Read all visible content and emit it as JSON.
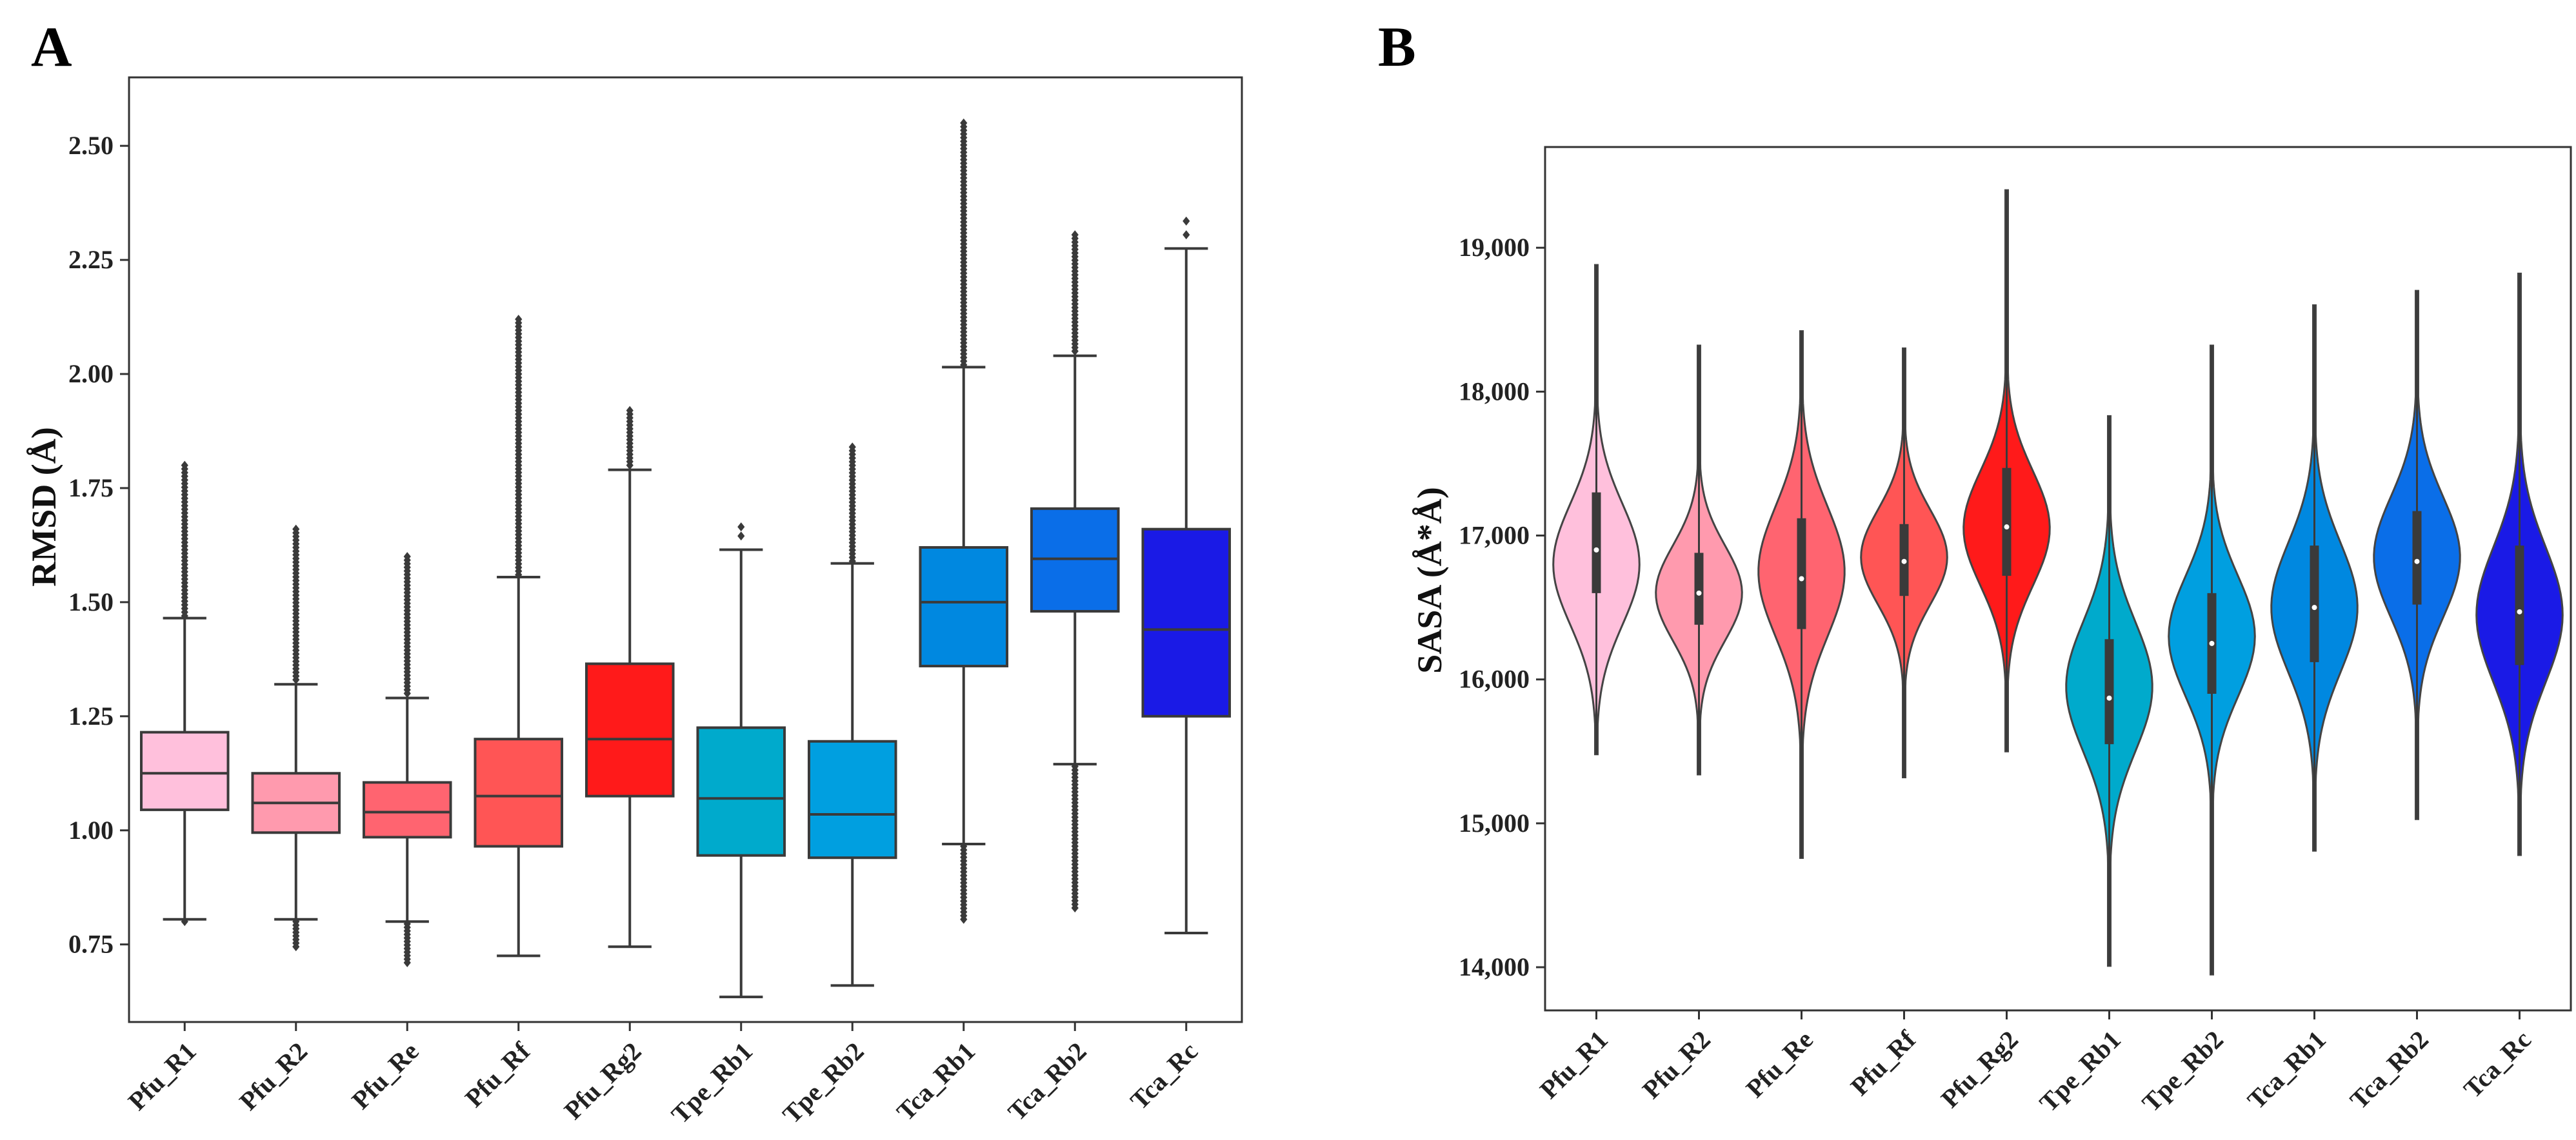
{
  "chart_data": [
    {
      "panel": "A",
      "type": "box",
      "title": "",
      "xlabel": "",
      "ylabel": "RMSD (Å)",
      "ylim": [
        0.58,
        2.65
      ],
      "yticks": [
        0.75,
        1.0,
        1.25,
        1.5,
        1.75,
        2.0,
        2.25,
        2.5
      ],
      "ytick_labels": [
        "0.75",
        "1.00",
        "1.25",
        "1.50",
        "1.75",
        "2.00",
        "2.25",
        "2.50"
      ],
      "categories": [
        "Pfu_R1",
        "Pfu_R2",
        "Pfu_Re",
        "Pfu_Rf",
        "Pfu_Rg2",
        "Tpe_Rb1",
        "Tpe_Rb2",
        "Tca_Rb1",
        "Tca_Rb2",
        "Tca_Rc"
      ],
      "colors": [
        "#ffc0dc",
        "#ff9aae",
        "#ff6470",
        "#ff5555",
        "#ff1a1a",
        "#00aacc",
        "#009fe0",
        "#0088e0",
        "#0a6ee8",
        "#1a1ae6"
      ],
      "boxes": [
        {
          "whislo": 0.805,
          "q1": 1.045,
          "median": 1.125,
          "q3": 1.215,
          "whishi": 1.465,
          "fliers_low": [
            0.8
          ],
          "fliers_high_min": 1.47,
          "fliers_high_max": 1.8
        },
        {
          "whislo": 0.805,
          "q1": 0.995,
          "median": 1.06,
          "q3": 1.125,
          "whishi": 1.32,
          "fliers_low_min": 0.745,
          "fliers_low_max": 0.8,
          "fliers_high_min": 1.33,
          "fliers_high_max": 1.66
        },
        {
          "whislo": 0.8,
          "q1": 0.985,
          "median": 1.04,
          "q3": 1.105,
          "whishi": 1.29,
          "fliers_low_min": 0.71,
          "fliers_low_max": 0.795,
          "fliers_high_min": 1.3,
          "fliers_high_max": 1.6
        },
        {
          "whislo": 0.725,
          "q1": 0.965,
          "median": 1.075,
          "q3": 1.2,
          "whishi": 1.555,
          "fliers_high_min": 1.56,
          "fliers_high_max": 2.12
        },
        {
          "whislo": 0.745,
          "q1": 1.075,
          "median": 1.2,
          "q3": 1.365,
          "whishi": 1.79,
          "fliers_high_min": 1.8,
          "fliers_high_max": 1.92
        },
        {
          "whislo": 0.635,
          "q1": 0.945,
          "median": 1.07,
          "q3": 1.225,
          "whishi": 1.615,
          "fliers_high": [
            1.645,
            1.665
          ]
        },
        {
          "whislo": 0.66,
          "q1": 0.94,
          "median": 1.035,
          "q3": 1.195,
          "whishi": 1.585,
          "fliers_high_min": 1.59,
          "fliers_high_max": 1.84
        },
        {
          "whislo": 0.97,
          "q1": 1.36,
          "median": 1.5,
          "q3": 1.62,
          "whishi": 2.015,
          "fliers_low_min": 0.805,
          "fliers_low_max": 0.965,
          "fliers_high_min": 2.02,
          "fliers_high_max": 2.55
        },
        {
          "whislo": 1.145,
          "q1": 1.48,
          "median": 1.595,
          "q3": 1.705,
          "whishi": 2.04,
          "fliers_low_min": 0.83,
          "fliers_low_max": 1.14,
          "fliers_high_min": 2.05,
          "fliers_high_max": 2.305
        },
        {
          "whislo": 0.775,
          "q1": 1.25,
          "median": 1.44,
          "q3": 1.66,
          "whishi": 2.275,
          "fliers_high": [
            2.305,
            2.335
          ]
        }
      ]
    },
    {
      "panel": "B",
      "type": "violin",
      "title": "",
      "xlabel": "",
      "ylabel": "SASA (Å*Å)",
      "ylim": [
        13700,
        19700
      ],
      "yticks": [
        14000,
        15000,
        16000,
        17000,
        18000,
        19000
      ],
      "ytick_labels": [
        "14,000",
        "15,000",
        "16,000",
        "17,000",
        "18,000",
        "19,000"
      ],
      "categories": [
        "Pfu_R1",
        "Pfu_R2",
        "Pfu_Re",
        "Pfu_Rf",
        "Pfu_Rg2",
        "Tpe_Rb1",
        "Tpe_Rb2",
        "Tca_Rb1",
        "Tca_Rb2",
        "Tca_Rc"
      ],
      "colors": [
        "#ffc0dc",
        "#ff9aae",
        "#ff6470",
        "#ff5555",
        "#ff1a1a",
        "#00aacc",
        "#009fe0",
        "#0088e0",
        "#0a6ee8",
        "#1a1ae6"
      ],
      "violins": [
        {
          "min": 15480,
          "max": 18880,
          "q1": 16600,
          "median": 16900,
          "q3": 17300,
          "mode": 16800,
          "spread": 420
        },
        {
          "min": 15340,
          "max": 18320,
          "q1": 16380,
          "median": 16600,
          "q3": 16880,
          "mode": 16600,
          "spread": 330
        },
        {
          "min": 14760,
          "max": 18420,
          "q1": 16350,
          "median": 16700,
          "q3": 17120,
          "mode": 16750,
          "spread": 450
        },
        {
          "min": 15320,
          "max": 18300,
          "q1": 16580,
          "median": 16820,
          "q3": 17080,
          "mode": 16850,
          "spread": 330
        },
        {
          "min": 15500,
          "max": 19400,
          "q1": 16720,
          "median": 17060,
          "q3": 17470,
          "mode": 17050,
          "spread": 400
        },
        {
          "min": 14010,
          "max": 17830,
          "q1": 15550,
          "median": 15870,
          "q3": 16280,
          "mode": 15950,
          "spread": 450
        },
        {
          "min": 13950,
          "max": 18320,
          "q1": 15900,
          "median": 16250,
          "q3": 16600,
          "mode": 16300,
          "spread": 420
        },
        {
          "min": 14810,
          "max": 18600,
          "q1": 16120,
          "median": 16500,
          "q3": 16930,
          "mode": 16500,
          "spread": 450
        },
        {
          "min": 15030,
          "max": 18700,
          "q1": 16520,
          "median": 16820,
          "q3": 17170,
          "mode": 16850,
          "spread": 420
        },
        {
          "min": 14780,
          "max": 18820,
          "q1": 16100,
          "median": 16470,
          "q3": 16930,
          "mode": 16450,
          "spread": 470
        }
      ]
    }
  ]
}
